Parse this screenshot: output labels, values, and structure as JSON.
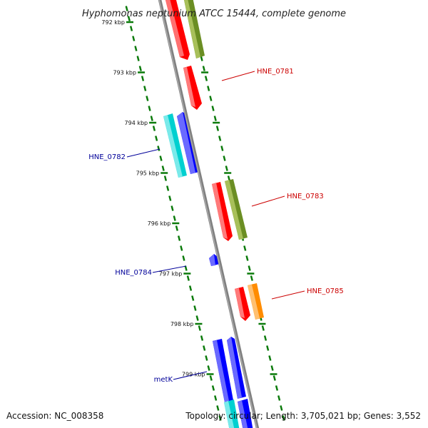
{
  "title": "Hyphomonas neptunium ATCC 15444, complete genome",
  "footer": {
    "accession": "Accession: NC_008358",
    "topology": "Topology: circular; Length: 3,705,021 bp; Genes: 3,552"
  },
  "colors": {
    "backbone": "#808080",
    "ticks": "#0a7a0a",
    "forward_label": "#cc0000",
    "reverse_label": "#000099",
    "red": "#ff0000",
    "olive": "#6b8e23",
    "cyan": "#00d0d0",
    "blue": "#0000ff",
    "orange": "#ff8c00"
  },
  "ticks": [
    {
      "kbp": 792,
      "label": "792 kbp"
    },
    {
      "kbp": 793,
      "label": "793 kbp"
    },
    {
      "kbp": 794,
      "label": "794 kbp"
    },
    {
      "kbp": 795,
      "label": "795 kbp"
    },
    {
      "kbp": 796,
      "label": "796 kbp"
    },
    {
      "kbp": 797,
      "label": "797 kbp"
    },
    {
      "kbp": 798,
      "label": "798 kbp"
    },
    {
      "kbp": 799,
      "label": "799 kbp"
    }
  ],
  "gene_labels": [
    {
      "text": "HNE_0781",
      "strand": "forward"
    },
    {
      "text": "HNE_0782",
      "strand": "reverse"
    },
    {
      "text": "HNE_0783",
      "strand": "forward"
    },
    {
      "text": "HNE_0784",
      "strand": "reverse"
    },
    {
      "text": "HNE_0785",
      "strand": "forward"
    },
    {
      "text": "metK",
      "strand": "reverse"
    }
  ]
}
